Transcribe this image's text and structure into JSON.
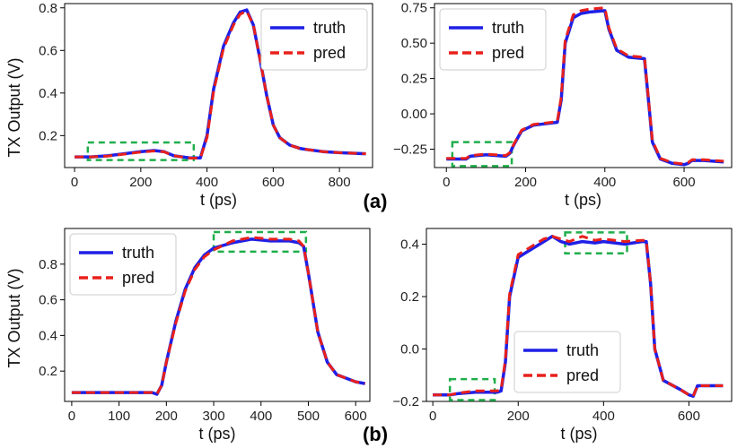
{
  "figure": {
    "ylabel": "TX Output (V)",
    "panel_labels": [
      "(a)",
      "(b)"
    ]
  },
  "colors": {
    "truth": "#1f1fe6",
    "pred": "#e8201b",
    "box": "#1fae4a"
  },
  "chart_data": [
    {
      "type": "line",
      "panel": "(a) left",
      "title": "",
      "xlabel": "t (ps)",
      "ylabel": "TX Output (V)",
      "xlim": [
        -30,
        900
      ],
      "ylim": [
        0.05,
        0.82
      ],
      "xticks": [
        0,
        200,
        400,
        600,
        800
      ],
      "xtick_labels": [
        "0",
        "200",
        "400",
        "600",
        "800"
      ],
      "yticks": [
        0.2,
        0.4,
        0.6,
        0.8
      ],
      "ytick_labels": [
        "0.2",
        "0.4",
        "0.6",
        "0.8"
      ],
      "legend": {
        "position": "top-right",
        "entries": [
          "truth",
          "pred"
        ]
      },
      "x": [
        0,
        50,
        100,
        150,
        200,
        240,
        270,
        300,
        350,
        380,
        400,
        420,
        450,
        480,
        500,
        520,
        540,
        560,
        580,
        600,
        620,
        650,
        680,
        700,
        750,
        800,
        880
      ],
      "series": [
        {
          "name": "truth",
          "values": [
            0.1,
            0.1,
            0.105,
            0.115,
            0.125,
            0.13,
            0.125,
            0.105,
            0.095,
            0.095,
            0.2,
            0.42,
            0.62,
            0.73,
            0.78,
            0.79,
            0.72,
            0.56,
            0.39,
            0.25,
            0.19,
            0.155,
            0.14,
            0.135,
            0.125,
            0.12,
            0.115
          ]
        },
        {
          "name": "pred",
          "values": [
            0.1,
            0.1,
            0.104,
            0.113,
            0.123,
            0.128,
            0.124,
            0.105,
            0.094,
            0.094,
            0.19,
            0.41,
            0.61,
            0.72,
            0.77,
            0.785,
            0.72,
            0.56,
            0.39,
            0.25,
            0.19,
            0.155,
            0.14,
            0.135,
            0.125,
            0.12,
            0.115
          ]
        }
      ],
      "highlight_boxes": [
        {
          "x": [
            40,
            360
          ],
          "y": [
            0.085,
            0.168
          ]
        }
      ]
    },
    {
      "type": "line",
      "panel": "(a) right",
      "title": "",
      "xlabel": "t (ps)",
      "ylabel": "",
      "xlim": [
        -30,
        720
      ],
      "ylim": [
        -0.38,
        0.78
      ],
      "xticks": [
        0,
        200,
        400,
        600
      ],
      "xtick_labels": [
        "0",
        "200",
        "400",
        "600"
      ],
      "yticks": [
        -0.25,
        0.0,
        0.25,
        0.5,
        0.75
      ],
      "ytick_labels": [
        "−0.25",
        "0.00",
        "0.25",
        "0.50",
        "0.75"
      ],
      "legend": {
        "position": "top-left",
        "entries": [
          "truth",
          "pred"
        ]
      },
      "x": [
        0,
        50,
        60,
        100,
        150,
        160,
        170,
        190,
        220,
        280,
        290,
        300,
        320,
        340,
        360,
        400,
        410,
        430,
        460,
        500,
        510,
        520,
        540,
        570,
        600,
        610,
        620,
        650,
        700
      ],
      "series": [
        {
          "name": "truth",
          "values": [
            -0.32,
            -0.32,
            -0.3,
            -0.29,
            -0.3,
            -0.28,
            -0.22,
            -0.12,
            -0.08,
            -0.06,
            0.1,
            0.5,
            0.68,
            0.71,
            0.72,
            0.73,
            0.6,
            0.45,
            0.4,
            0.39,
            0.1,
            -0.2,
            -0.32,
            -0.35,
            -0.36,
            -0.35,
            -0.33,
            -0.33,
            -0.34
          ]
        },
        {
          "name": "pred",
          "values": [
            -0.315,
            -0.315,
            -0.295,
            -0.285,
            -0.295,
            -0.275,
            -0.215,
            -0.115,
            -0.075,
            -0.055,
            0.12,
            0.52,
            0.7,
            0.73,
            0.74,
            0.75,
            0.61,
            0.46,
            0.41,
            0.4,
            0.11,
            -0.19,
            -0.315,
            -0.345,
            -0.355,
            -0.345,
            -0.325,
            -0.325,
            -0.335
          ]
        }
      ],
      "highlight_boxes": [
        {
          "x": [
            15,
            165
          ],
          "y": [
            -0.37,
            -0.2
          ]
        }
      ]
    },
    {
      "type": "line",
      "panel": "(b) left",
      "title": "",
      "xlabel": "t (ps)",
      "ylabel": "TX Output (V)",
      "xlim": [
        -15,
        630
      ],
      "ylim": [
        0.03,
        1.0
      ],
      "xticks": [
        0,
        100,
        200,
        300,
        400,
        500,
        600
      ],
      "xtick_labels": [
        "0",
        "100",
        "200",
        "300",
        "400",
        "500",
        "600"
      ],
      "yticks": [
        0.2,
        0.4,
        0.6,
        0.8
      ],
      "ytick_labels": [
        "0.2",
        "0.4",
        "0.6",
        "0.8"
      ],
      "legend": {
        "position": "top-left",
        "entries": [
          "truth",
          "pred"
        ]
      },
      "x": [
        0,
        100,
        160,
        170,
        180,
        190,
        200,
        220,
        240,
        260,
        280,
        300,
        340,
        380,
        420,
        460,
        480,
        490,
        500,
        520,
        540,
        560,
        600,
        620
      ],
      "series": [
        {
          "name": "truth",
          "values": [
            0.08,
            0.08,
            0.08,
            0.08,
            0.07,
            0.12,
            0.25,
            0.48,
            0.66,
            0.78,
            0.85,
            0.89,
            0.92,
            0.94,
            0.93,
            0.93,
            0.92,
            0.9,
            0.75,
            0.42,
            0.25,
            0.18,
            0.14,
            0.13
          ]
        },
        {
          "name": "pred",
          "values": [
            0.08,
            0.08,
            0.08,
            0.08,
            0.07,
            0.12,
            0.25,
            0.47,
            0.65,
            0.77,
            0.84,
            0.88,
            0.93,
            0.95,
            0.94,
            0.94,
            0.93,
            0.9,
            0.75,
            0.42,
            0.25,
            0.18,
            0.14,
            0.13
          ]
        }
      ],
      "highlight_boxes": [
        {
          "x": [
            300,
            495
          ],
          "y": [
            0.87,
            0.98
          ]
        }
      ]
    },
    {
      "type": "line",
      "panel": "(b) right",
      "title": "",
      "xlabel": "t (ps)",
      "ylabel": "",
      "xlim": [
        -15,
        700
      ],
      "ylim": [
        -0.2,
        0.46
      ],
      "xticks": [
        0,
        200,
        400,
        600
      ],
      "xtick_labels": [
        "0",
        "200",
        "400",
        "600"
      ],
      "yticks": [
        -0.2,
        0.0,
        0.2,
        0.4
      ],
      "ytick_labels": [
        "−0.2",
        "0.0",
        "0.2",
        "0.4"
      ],
      "legend": {
        "position": "bottom-center",
        "entries": [
          "truth",
          "pred"
        ]
      },
      "x": [
        0,
        40,
        60,
        100,
        150,
        160,
        170,
        180,
        200,
        240,
        260,
        280,
        300,
        320,
        350,
        380,
        400,
        450,
        490,
        500,
        510,
        520,
        540,
        580,
        600,
        610,
        620,
        680
      ],
      "series": [
        {
          "name": "truth",
          "values": [
            -0.175,
            -0.175,
            -0.17,
            -0.165,
            -0.165,
            -0.16,
            -0.05,
            0.2,
            0.35,
            0.39,
            0.41,
            0.43,
            0.41,
            0.4,
            0.41,
            0.405,
            0.41,
            0.4,
            0.41,
            0.41,
            0.25,
            0.0,
            -0.12,
            -0.155,
            -0.175,
            -0.18,
            -0.14,
            -0.14
          ]
        },
        {
          "name": "pred",
          "values": [
            -0.175,
            -0.175,
            -0.168,
            -0.16,
            -0.16,
            -0.155,
            -0.04,
            0.21,
            0.36,
            0.4,
            0.42,
            0.43,
            0.42,
            0.41,
            0.43,
            0.415,
            0.42,
            0.41,
            0.415,
            0.415,
            0.25,
            0.0,
            -0.12,
            -0.155,
            -0.175,
            -0.18,
            -0.14,
            -0.14
          ]
        }
      ],
      "highlight_boxes": [
        {
          "x": [
            40,
            145
          ],
          "y": [
            -0.195,
            -0.115
          ]
        },
        {
          "x": [
            310,
            455
          ],
          "y": [
            0.365,
            0.445
          ]
        }
      ]
    }
  ]
}
